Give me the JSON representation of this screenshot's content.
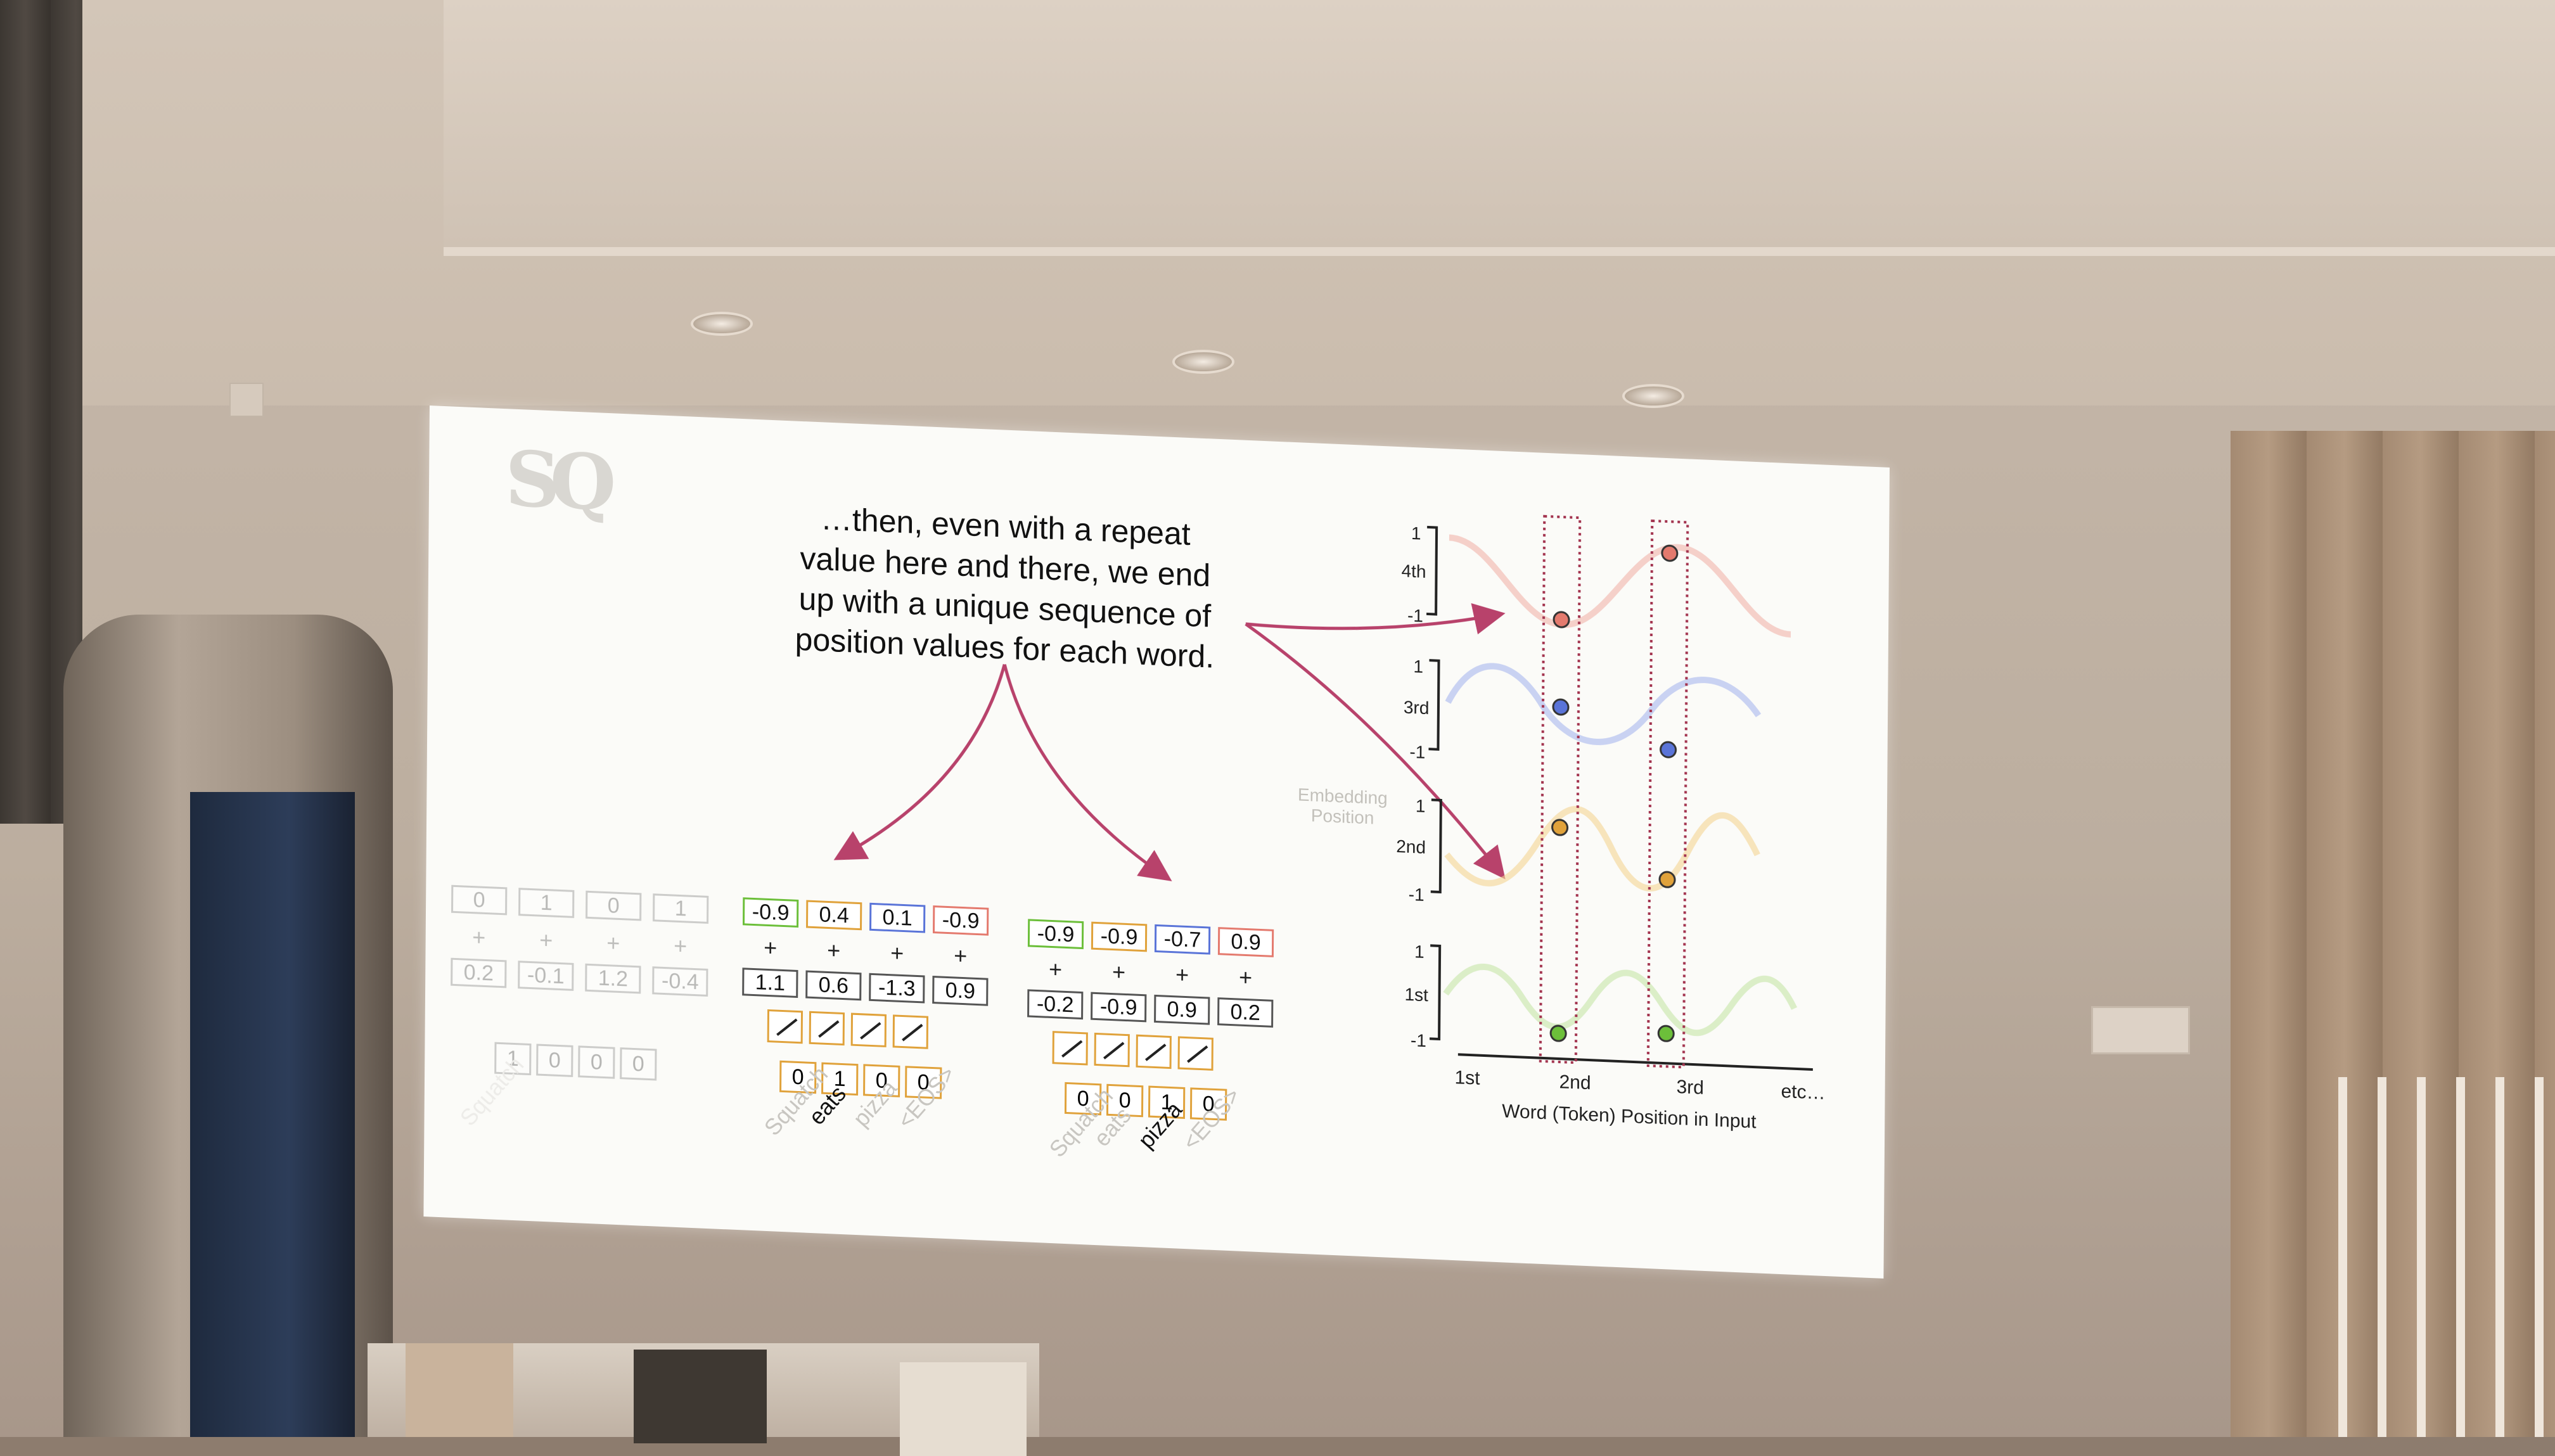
{
  "slide": {
    "caption_lines": [
      "…then, even with a repeat",
      "value here and there, we end",
      "up with a unique sequence of",
      "position values for each word."
    ],
    "logo_text": "SQ",
    "embedding_label_line1": "Embedding",
    "embedding_label_line2": "Position",
    "x_axis_label": "Word (Token) Position in Input",
    "x_ticks": [
      "1st",
      "2nd",
      "3rd",
      "etc…"
    ],
    "y_labels": [
      "4th",
      "3rd",
      "2nd",
      "1st"
    ],
    "y_bounds": [
      "1",
      "-1"
    ],
    "ghost_group": {
      "top": [
        "0",
        "1",
        "0",
        "1"
      ],
      "bottom": [
        "0.2",
        "-0.1",
        "1.2",
        "-0.4"
      ],
      "binary": [
        "1",
        "0",
        "0",
        "0"
      ],
      "word": "Squatch"
    },
    "group_eats": {
      "top": [
        "-0.9",
        "0.4",
        "0.1",
        "-0.9"
      ],
      "bottom": [
        "1.1",
        "0.6",
        "-1.3",
        "0.9"
      ],
      "binary": [
        "0",
        "1",
        "0",
        "0"
      ],
      "words": [
        "Squatch",
        "eats",
        "pizza",
        "<EOS>"
      ]
    },
    "group_pizza": {
      "top": [
        "-0.9",
        "-0.9",
        "-0.7",
        "0.9"
      ],
      "bottom": [
        "-0.2",
        "-0.9",
        "0.9",
        "0.2"
      ],
      "binary": [
        "0",
        "0",
        "1",
        "0"
      ],
      "words": [
        "Squatch",
        "eats",
        "pizza",
        "<EOS>"
      ]
    },
    "plus_sign": "+",
    "colors": {
      "green": "#6cbf3a",
      "orange": "#e0a23b",
      "blue": "#5a74d8",
      "red": "#e47a6e",
      "arrow": "#b8426b",
      "dotted": "#a3344f"
    }
  }
}
